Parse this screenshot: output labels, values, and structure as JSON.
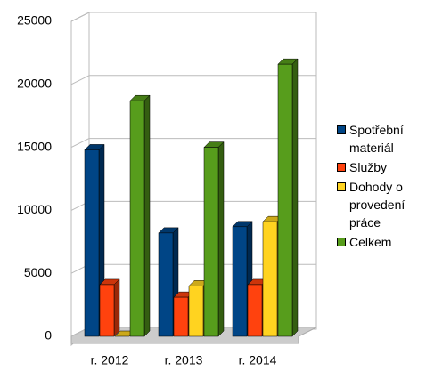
{
  "chart_data": {
    "type": "bar3d",
    "categories": [
      "r. 2012",
      "r. 2013",
      "r. 2014"
    ],
    "series": [
      {
        "name": "Spotřební materiál",
        "color": "#004586",
        "values": [
          14800,
          8200,
          8700
        ]
      },
      {
        "name": "Služby",
        "color": "#ff420e",
        "values": [
          4100,
          3100,
          4100
        ]
      },
      {
        "name": "Dohody o provedení práce",
        "color": "#ffd320",
        "values": [
          0,
          4000,
          9100
        ]
      },
      {
        "name": "Celkem",
        "color": "#579d1c",
        "values": [
          18700,
          15000,
          21600
        ]
      }
    ],
    "ylim": [
      0,
      25000
    ],
    "yticks": [
      0,
      5000,
      10000,
      15000,
      20000,
      25000
    ],
    "grid": true,
    "legend": "right"
  }
}
